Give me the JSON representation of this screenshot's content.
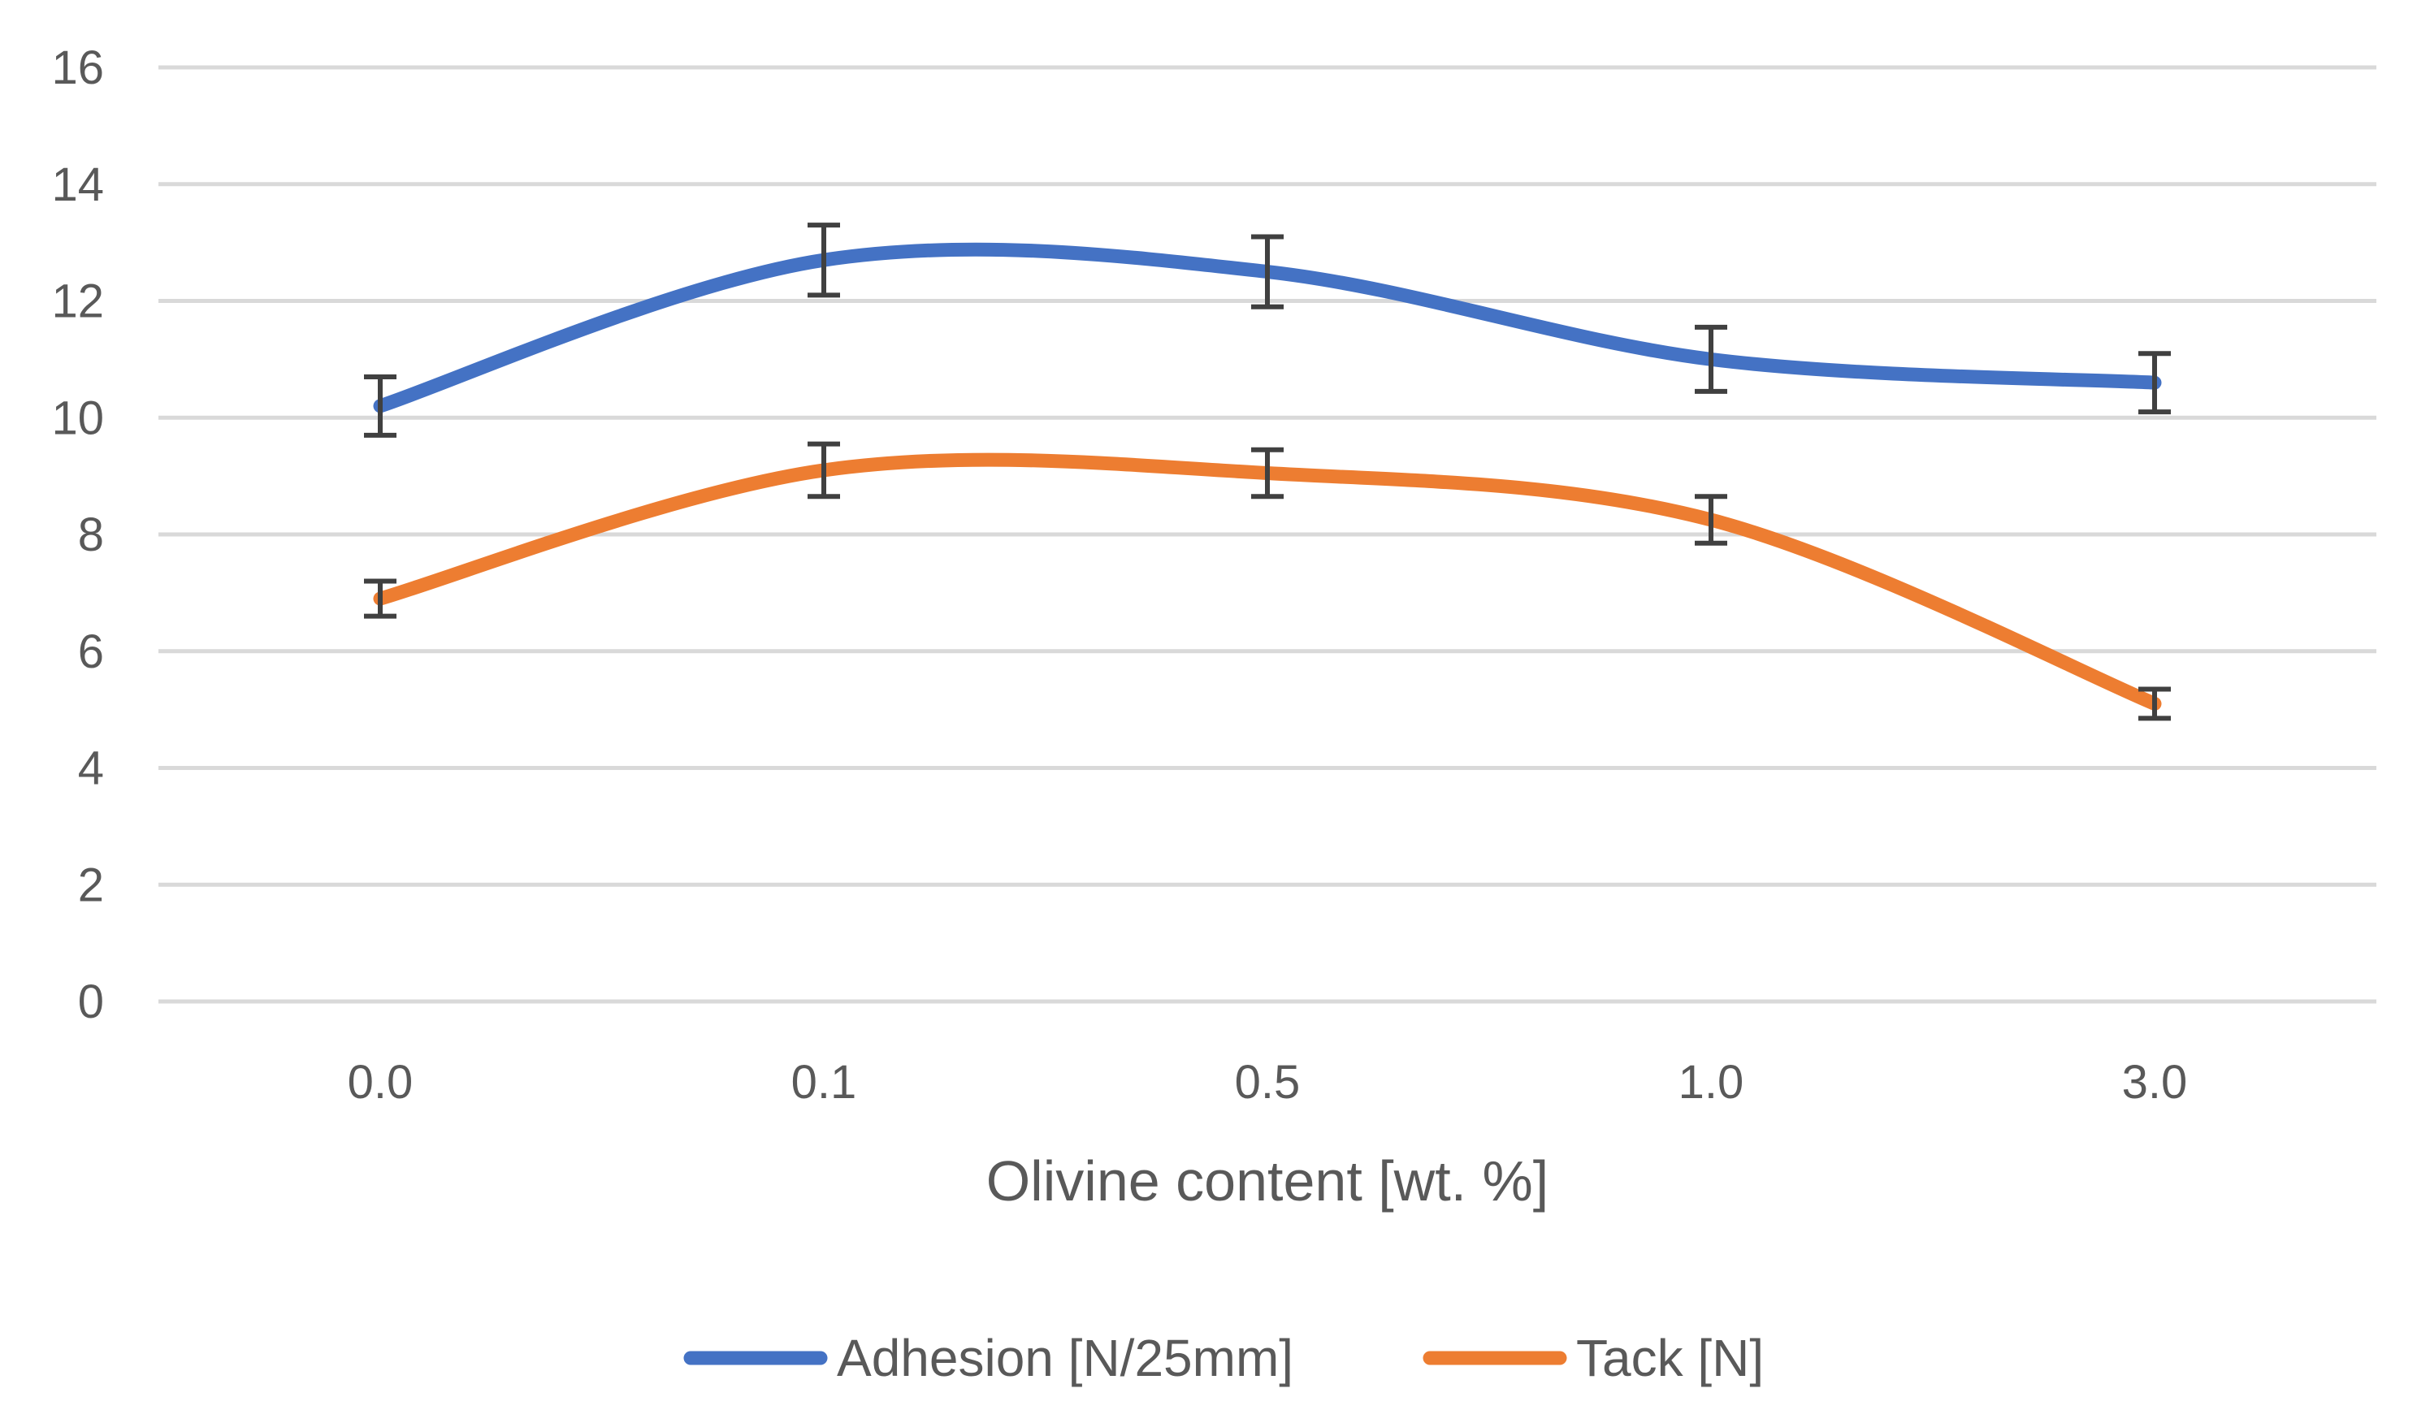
{
  "chart_data": {
    "type": "line",
    "title": "",
    "xlabel": "Olivine content [wt. %]",
    "ylabel": "",
    "categories": [
      "0.0",
      "0.1",
      "0.5",
      "1.0",
      "3.0"
    ],
    "ylim": [
      0,
      16
    ],
    "yticks": [
      "0",
      "2",
      "4",
      "6",
      "8",
      "10",
      "12",
      "14",
      "16"
    ],
    "grid": true,
    "legend_position": "bottom",
    "series": [
      {
        "name": "Adhesion [N/25mm]",
        "color": "#4472C4",
        "values": [
          10.2,
          12.7,
          12.5,
          11.0,
          10.6
        ],
        "errors": [
          0.5,
          0.6,
          0.6,
          0.55,
          0.5
        ]
      },
      {
        "name": "Tack [N]",
        "color": "#ED7D31",
        "values": [
          6.9,
          9.1,
          9.05,
          8.25,
          5.1
        ],
        "errors": [
          0.3,
          0.45,
          0.4,
          0.4,
          0.25
        ]
      }
    ]
  }
}
